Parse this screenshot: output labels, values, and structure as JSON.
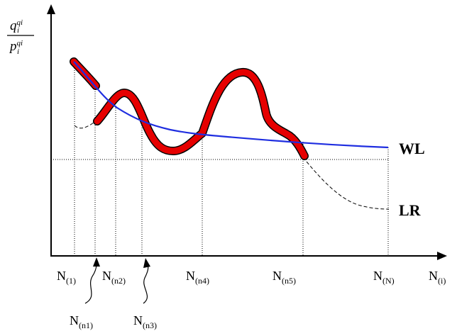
{
  "yaxis": {
    "numerator": "q",
    "numerator_sub": "i",
    "numerator_sup": "qi",
    "denominator": "p",
    "denominator_sub": "i",
    "denominator_sup": "qi"
  },
  "xaxis": {
    "main": "N",
    "sub": "(i)"
  },
  "curve_labels": {
    "wl": "WL",
    "lr": "LR"
  },
  "ticks": [
    {
      "main": "N",
      "sub": "(1)"
    },
    {
      "main": "N",
      "sub": "(n2)"
    },
    {
      "main": "N",
      "sub": "(n4)"
    },
    {
      "main": "N",
      "sub": "(n5)"
    },
    {
      "main": "N",
      "sub": "(N)"
    }
  ],
  "callouts": [
    {
      "main": "N",
      "sub": "(n1)"
    },
    {
      "main": "N",
      "sub": "(n3)"
    }
  ],
  "colors": {
    "axis": "#000000",
    "wl": "#1f2ee0",
    "highlight": "#e60000",
    "highlight_outline": "#000000",
    "lr": "#000000",
    "guides": "#000000"
  }
}
